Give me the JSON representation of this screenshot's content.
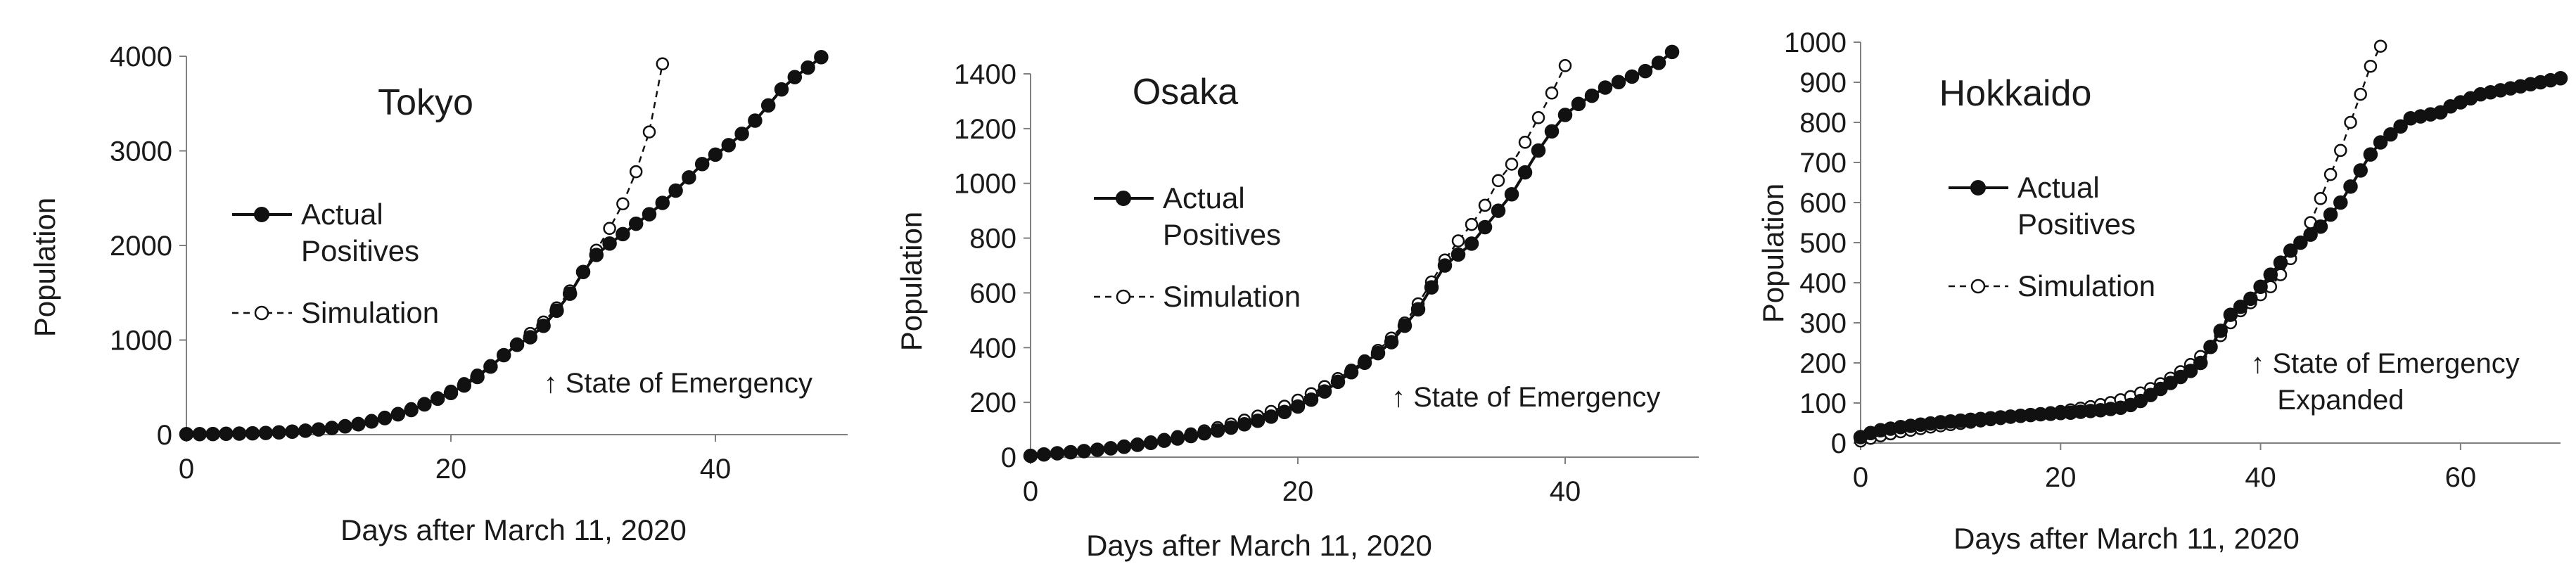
{
  "chart_data": [
    {
      "type": "line",
      "title": "Tokyo",
      "xlabel": "Days after March 11, 2020",
      "ylabel": "Population",
      "xlim": [
        0,
        50
      ],
      "ylim": [
        0,
        4000
      ],
      "xticks": [
        "0",
        "20",
        "40"
      ],
      "yticks": [
        "0",
        "1000",
        "2000",
        "3000",
        "4000"
      ],
      "grid": false,
      "legend_position": "left",
      "annotation": "↑ State of Emergency",
      "annotation_lines": [
        "↑ State of Emergency"
      ],
      "annotation_x": 27,
      "series": [
        {
          "name": "Actual Positives",
          "name_lines": [
            "Actual",
            "Positives"
          ],
          "style": "filled-solid",
          "x": [
            0,
            1,
            2,
            3,
            4,
            5,
            6,
            7,
            8,
            9,
            10,
            11,
            12,
            13,
            14,
            15,
            16,
            17,
            18,
            19,
            20,
            21,
            22,
            23,
            24,
            25,
            26,
            27,
            28,
            29,
            30,
            31,
            32,
            33,
            34,
            35,
            36,
            37,
            38,
            39,
            40,
            41,
            42,
            43,
            44,
            45,
            46,
            47,
            48
          ],
          "y": [
            5,
            6,
            7,
            9,
            11,
            14,
            18,
            24,
            32,
            42,
            55,
            70,
            88,
            110,
            140,
            175,
            215,
            260,
            320,
            380,
            440,
            520,
            610,
            720,
            840,
            950,
            1030,
            1150,
            1310,
            1490,
            1720,
            1900,
            2020,
            2120,
            2230,
            2330,
            2450,
            2580,
            2720,
            2860,
            2960,
            3060,
            3180,
            3320,
            3480,
            3650,
            3780,
            3880,
            3990
          ]
        },
        {
          "name": "Simulation",
          "style": "open-dashed",
          "x": [
            0,
            1,
            2,
            3,
            4,
            5,
            6,
            7,
            8,
            9,
            10,
            11,
            12,
            13,
            14,
            15,
            16,
            17,
            18,
            19,
            20,
            21,
            22,
            23,
            24,
            25,
            26,
            27,
            28,
            29,
            30,
            31,
            32,
            33,
            34,
            35,
            36
          ],
          "y": [
            5,
            6,
            8,
            10,
            13,
            17,
            22,
            28,
            37,
            48,
            62,
            78,
            97,
            120,
            150,
            185,
            225,
            275,
            330,
            390,
            460,
            540,
            630,
            730,
            840,
            960,
            1070,
            1190,
            1340,
            1520,
            1720,
            1950,
            2180,
            2440,
            2780,
            3200,
            3920
          ]
        }
      ]
    },
    {
      "type": "line",
      "title": "Osaka",
      "xlabel": "Days after March 11, 2020",
      "ylabel": "Population",
      "xlim": [
        0,
        50
      ],
      "ylim": [
        0,
        1400
      ],
      "xticks": [
        "0",
        "20",
        "40"
      ],
      "yticks": [
        "0",
        "200",
        "400",
        "600",
        "800",
        "1000",
        "1200",
        "1400"
      ],
      "grid": false,
      "legend_position": "left",
      "annotation": "↑ State of Emergency",
      "annotation_lines": [
        "↑ State of Emergency"
      ],
      "annotation_x": 27,
      "series": [
        {
          "name": "Actual Positives",
          "name_lines": [
            "Actual",
            "Positives"
          ],
          "style": "filled-solid",
          "x": [
            0,
            1,
            2,
            3,
            4,
            5,
            6,
            7,
            8,
            9,
            10,
            11,
            12,
            13,
            14,
            15,
            16,
            17,
            18,
            19,
            20,
            21,
            22,
            23,
            24,
            25,
            26,
            27,
            28,
            29,
            30,
            31,
            32,
            33,
            34,
            35,
            36,
            37,
            38,
            39,
            40,
            41,
            42,
            43,
            44,
            45,
            46,
            47,
            48
          ],
          "y": [
            5,
            10,
            14,
            18,
            22,
            27,
            32,
            38,
            45,
            52,
            60,
            68,
            77,
            87,
            97,
            108,
            120,
            133,
            148,
            165,
            185,
            210,
            240,
            275,
            310,
            345,
            380,
            420,
            480,
            540,
            620,
            700,
            740,
            780,
            840,
            900,
            960,
            1040,
            1120,
            1190,
            1250,
            1290,
            1320,
            1350,
            1370,
            1390,
            1410,
            1440,
            1480
          ]
        },
        {
          "name": "Simulation",
          "style": "open-dashed",
          "x": [
            0,
            1,
            2,
            3,
            4,
            5,
            6,
            7,
            8,
            9,
            10,
            11,
            12,
            13,
            14,
            15,
            16,
            17,
            18,
            19,
            20,
            21,
            22,
            23,
            24,
            25,
            26,
            27,
            28,
            29,
            30,
            31,
            32,
            33,
            34,
            35,
            36,
            37,
            38,
            39,
            40
          ],
          "y": [
            5,
            10,
            15,
            19,
            24,
            29,
            35,
            41,
            48,
            56,
            65,
            75,
            85,
            96,
            108,
            121,
            135,
            150,
            167,
            186,
            208,
            232,
            258,
            287,
            318,
            352,
            390,
            435,
            490,
            560,
            640,
            720,
            790,
            850,
            920,
            1010,
            1070,
            1150,
            1240,
            1330,
            1430
          ]
        }
      ]
    },
    {
      "type": "line",
      "title": "Hokkaido",
      "xlabel": "Days after March 11, 2020",
      "ylabel": "Population",
      "xlim": [
        0,
        70
      ],
      "ylim": [
        0,
        1000
      ],
      "xticks": [
        "0",
        "20",
        "40",
        "60"
      ],
      "yticks": [
        "0",
        "100",
        "200",
        "300",
        "400",
        "500",
        "600",
        "700",
        "800",
        "900",
        "1000"
      ],
      "grid": false,
      "legend_position": "left",
      "annotation": "↑ State of Emergency Expanded",
      "annotation_lines": [
        "↑ State of Emergency",
        "Expanded"
      ],
      "annotation_x": 39,
      "series": [
        {
          "name": "Actual Positives",
          "name_lines": [
            "Actual",
            "Positives"
          ],
          "style": "filled-solid",
          "x": [
            0,
            1,
            2,
            3,
            4,
            5,
            6,
            7,
            8,
            9,
            10,
            11,
            12,
            13,
            14,
            15,
            16,
            17,
            18,
            19,
            20,
            21,
            22,
            23,
            24,
            25,
            26,
            27,
            28,
            29,
            30,
            31,
            32,
            33,
            34,
            35,
            36,
            37,
            38,
            39,
            40,
            41,
            42,
            43,
            44,
            45,
            46,
            47,
            48,
            49,
            50,
            51,
            52,
            53,
            54,
            55,
            56,
            57,
            58,
            59,
            60,
            61,
            62,
            63,
            64,
            65,
            66,
            67,
            68,
            69,
            70
          ],
          "y": [
            15,
            25,
            32,
            36,
            40,
            43,
            46,
            49,
            52,
            54,
            56,
            58,
            60,
            62,
            64,
            66,
            68,
            70,
            72,
            73,
            75,
            76,
            78,
            80,
            82,
            85,
            88,
            95,
            105,
            120,
            135,
            150,
            165,
            180,
            200,
            240,
            280,
            320,
            340,
            360,
            390,
            420,
            450,
            480,
            500,
            520,
            540,
            570,
            600,
            640,
            680,
            720,
            750,
            770,
            790,
            810,
            815,
            820,
            825,
            840,
            850,
            860,
            870,
            875,
            880,
            885,
            890,
            895,
            900,
            905,
            910
          ]
        },
        {
          "name": "Simulation",
          "style": "open-dashed",
          "x": [
            0,
            1,
            2,
            3,
            4,
            5,
            6,
            7,
            8,
            9,
            10,
            11,
            12,
            13,
            14,
            15,
            16,
            17,
            18,
            19,
            20,
            21,
            22,
            23,
            24,
            25,
            26,
            27,
            28,
            29,
            30,
            31,
            32,
            33,
            34,
            35,
            36,
            37,
            38,
            39,
            40,
            41,
            42,
            43,
            44,
            45,
            46,
            47,
            48,
            49,
            50,
            51,
            52
          ],
          "y": [
            5,
            12,
            18,
            23,
            28,
            32,
            36,
            40,
            43,
            46,
            49,
            52,
            55,
            58,
            61,
            64,
            67,
            70,
            73,
            76,
            79,
            83,
            87,
            91,
            96,
            101,
            108,
            116,
            125,
            136,
            148,
            162,
            178,
            196,
            216,
            240,
            268,
            300,
            330,
            350,
            370,
            390,
            420,
            460,
            500,
            550,
            610,
            670,
            730,
            800,
            870,
            940,
            990
          ]
        }
      ]
    }
  ]
}
